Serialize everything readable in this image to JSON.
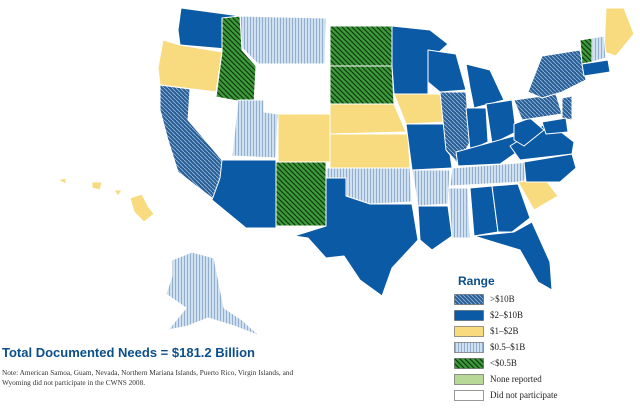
{
  "legend": {
    "title": "Range",
    "items": [
      {
        "id": "gt10",
        "label": ">$10B",
        "fill": "#2a5f96",
        "hatch": "#8fb3d9"
      },
      {
        "id": "b2to10",
        "label": "$2–$10B",
        "fill": "#0b5aa5",
        "hatch": null
      },
      {
        "id": "b1to2",
        "label": "$1–$2B",
        "fill": "#f8db7e",
        "hatch": null
      },
      {
        "id": "b05to1",
        "label": "$0.5–$1B",
        "fill": "#cfe0f1",
        "hatch": "#8eaacb"
      },
      {
        "id": "lt05",
        "label": "<$0.5B",
        "fill": "#3e9a3a",
        "hatch": "#0d3a0d"
      },
      {
        "id": "none",
        "label": "None reported",
        "fill": "#b8d898",
        "hatch": null
      },
      {
        "id": "dnp",
        "label": "Did not participate",
        "fill": "#ffffff",
        "hatch": null
      }
    ]
  },
  "total": "Total Documented Needs = $181.2 Billion",
  "note": "Note: American Samoa, Guam, Nevada, Northern Mariana Islands, Puerto Rico, Virgin Islands, and Wyoming did not participate in the CWNS 2008.",
  "colors": {
    "state_border": "#ffffff"
  },
  "states": [
    {
      "name": "WA",
      "category": "b2to10"
    },
    {
      "name": "OR",
      "category": "b1to2"
    },
    {
      "name": "CA",
      "category": "gt10"
    },
    {
      "name": "NV",
      "category": "dnp"
    },
    {
      "name": "ID",
      "category": "lt05"
    },
    {
      "name": "MT",
      "category": "b05to1"
    },
    {
      "name": "WY",
      "category": "dnp"
    },
    {
      "name": "UT",
      "category": "b05to1"
    },
    {
      "name": "AZ",
      "category": "b2to10"
    },
    {
      "name": "CO",
      "category": "b1to2"
    },
    {
      "name": "NM",
      "category": "lt05"
    },
    {
      "name": "ND",
      "category": "lt05"
    },
    {
      "name": "SD",
      "category": "lt05"
    },
    {
      "name": "NE",
      "category": "b1to2"
    },
    {
      "name": "KS",
      "category": "b1to2"
    },
    {
      "name": "OK",
      "category": "b05to1"
    },
    {
      "name": "TX",
      "category": "b2to10"
    },
    {
      "name": "MN",
      "category": "b2to10"
    },
    {
      "name": "IA",
      "category": "b1to2"
    },
    {
      "name": "MO",
      "category": "b2to10"
    },
    {
      "name": "AR",
      "category": "b05to1"
    },
    {
      "name": "LA",
      "category": "b2to10"
    },
    {
      "name": "WI",
      "category": "b2to10"
    },
    {
      "name": "IL",
      "category": "gt10"
    },
    {
      "name": "MI",
      "category": "b2to10"
    },
    {
      "name": "IN",
      "category": "b2to10"
    },
    {
      "name": "OH",
      "category": "b2to10"
    },
    {
      "name": "KY",
      "category": "b2to10"
    },
    {
      "name": "TN",
      "category": "b05to1"
    },
    {
      "name": "MS",
      "category": "b05to1"
    },
    {
      "name": "AL",
      "category": "b2to10"
    },
    {
      "name": "GA",
      "category": "b2to10"
    },
    {
      "name": "FL",
      "category": "b2to10"
    },
    {
      "name": "SC",
      "category": "b1to2"
    },
    {
      "name": "NC",
      "category": "b2to10"
    },
    {
      "name": "VA",
      "category": "b2to10"
    },
    {
      "name": "WV",
      "category": "b2to10"
    },
    {
      "name": "PA",
      "category": "gt10"
    },
    {
      "name": "NY",
      "category": "gt10"
    },
    {
      "name": "ME",
      "category": "b1to2"
    },
    {
      "name": "VT",
      "category": "lt05"
    },
    {
      "name": "NH",
      "category": "b05to1"
    },
    {
      "name": "MA",
      "category": "b2to10"
    },
    {
      "name": "NJ",
      "category": "gt10"
    },
    {
      "name": "MD",
      "category": "b2to10"
    },
    {
      "name": "AK",
      "category": "b05to1"
    },
    {
      "name": "HI",
      "category": "b1to2"
    },
    {
      "name": "PR",
      "category": "dnp"
    }
  ]
}
